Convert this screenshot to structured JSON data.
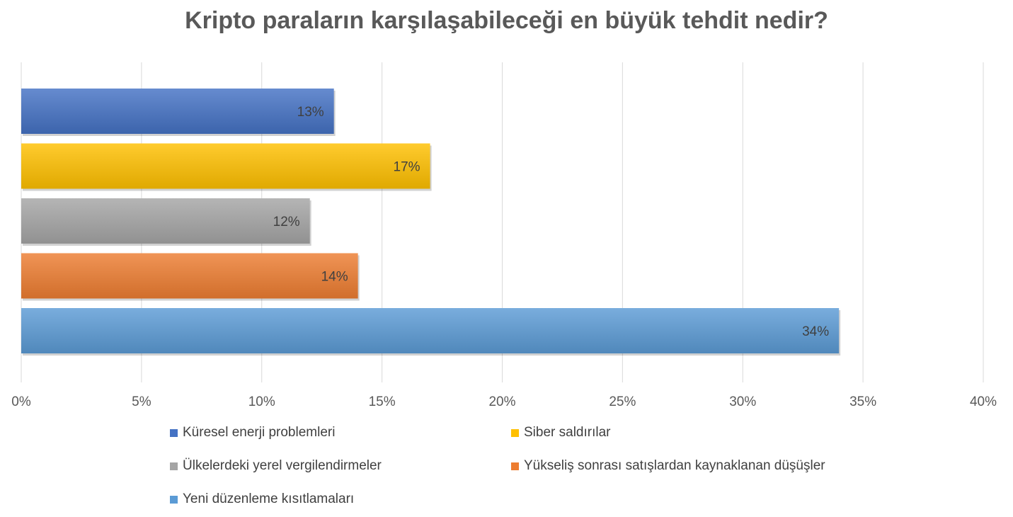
{
  "chart_data": {
    "type": "bar",
    "orientation": "horizontal",
    "title": "Kripto paraların karşılaşabileceği en büyük tehdit nedir?",
    "xlabel": "",
    "ylabel": "",
    "xlim": [
      0,
      40
    ],
    "x_ticks": [
      "0%",
      "5%",
      "10%",
      "15%",
      "20%",
      "25%",
      "30%",
      "35%",
      "40%"
    ],
    "grid": true,
    "legend_position": "bottom",
    "series": [
      {
        "name": "Küresel enerji problemleri",
        "value": 13,
        "label": "13%",
        "color": "#4472c4"
      },
      {
        "name": "Siber saldırılar",
        "value": 17,
        "label": "17%",
        "color": "#ffc000"
      },
      {
        "name": "Ülkelerdeki yerel vergilendirmeler",
        "value": 12,
        "label": "12%",
        "color": "#a5a5a5"
      },
      {
        "name": "Yükseliş sonrası satışlardan kaynaklanan düşüşler",
        "value": 14,
        "label": "14%",
        "color": "#ed7d31"
      },
      {
        "name": "Yeni düzenleme kısıtlamaları",
        "value": 34,
        "label": "34%",
        "color": "#5b9bd5"
      }
    ]
  }
}
